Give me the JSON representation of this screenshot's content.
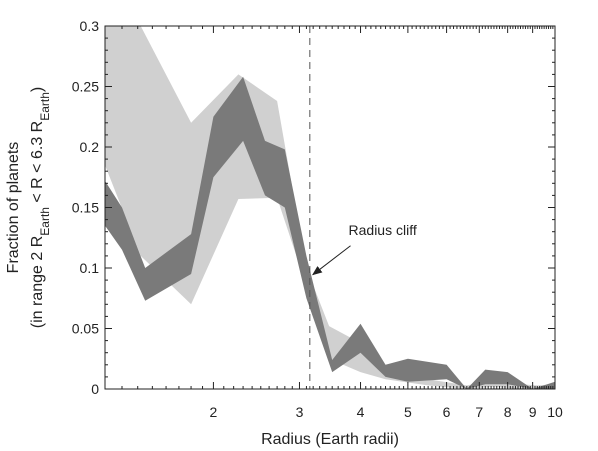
{
  "chart_data": {
    "type": "area",
    "xlabel": "Radius (Earth radii)",
    "ylabel_line1": "Fraction of planets",
    "ylabel_line2": {
      "parts": [
        {
          "t": "(in range 2 R",
          "sub": false
        },
        {
          "t": "Earth",
          "sub": true
        },
        {
          "t": " < R < 6.3 R",
          "sub": false
        },
        {
          "t": "Earth",
          "sub": true
        },
        {
          "t": ")",
          "sub": false
        }
      ]
    },
    "x_scale": "log",
    "xlim": [
      1.2,
      10
    ],
    "ylim": [
      0,
      0.3
    ],
    "x_major_ticks": [
      2,
      3,
      4,
      5,
      6,
      7,
      8,
      9,
      10
    ],
    "x_tick_labels": [
      "2",
      "3",
      "4",
      "5",
      "6",
      "7",
      "8",
      "9",
      "10"
    ],
    "y_ticks": [
      0,
      0.05,
      0.1,
      0.15,
      0.2,
      0.25,
      0.3
    ],
    "y_tick_labels": [
      "0",
      "0.05",
      "0.1",
      "0.15",
      "0.2",
      "0.25",
      "0.3"
    ],
    "grid": false,
    "bands": [
      {
        "color": "#d0d0d0",
        "x": [
          1.2,
          1.42,
          1.8,
          2.25,
          2.7,
          3.1,
          3.45,
          4.0,
          4.5,
          5.5,
          6.6,
          7.5,
          8.5,
          9.2,
          10
        ],
        "upper": [
          0.3,
          0.3,
          0.22,
          0.26,
          0.238,
          0.1,
          0.052,
          0.038,
          0.018,
          0.008,
          0.003,
          0.007,
          0.004,
          0.003,
          0.004
        ],
        "lower": [
          0.185,
          0.11,
          0.07,
          0.157,
          0.158,
          0.085,
          0.025,
          0.014,
          0.008,
          0.003,
          0.0,
          0.002,
          0.0,
          0.0,
          0.001
        ]
      },
      {
        "color": "#7a7a7a",
        "x": [
          1.2,
          1.3,
          1.45,
          1.8,
          2.0,
          2.3,
          2.55,
          2.8,
          3.1,
          3.5,
          4.0,
          4.5,
          5.0,
          6.0,
          6.6,
          7.2,
          8.0,
          9.0,
          10
        ],
        "upper": [
          0.172,
          0.15,
          0.1,
          0.128,
          0.225,
          0.258,
          0.205,
          0.198,
          0.11,
          0.024,
          0.054,
          0.02,
          0.025,
          0.02,
          0.0,
          0.016,
          0.014,
          0.0,
          0.006
        ],
        "lower": [
          0.135,
          0.115,
          0.073,
          0.095,
          0.175,
          0.205,
          0.16,
          0.15,
          0.075,
          0.014,
          0.03,
          0.01,
          0.006,
          0.008,
          0.0,
          0.004,
          0.004,
          0.0,
          0.0
        ]
      }
    ],
    "reference_line": {
      "x": 3.15,
      "style": "dashed"
    },
    "annotations": [
      {
        "text": "Radius cliff",
        "label_x": 4.0,
        "label_y": 0.125,
        "arrow_to_x": 3.15,
        "arrow_to_y": 0.092
      }
    ]
  }
}
